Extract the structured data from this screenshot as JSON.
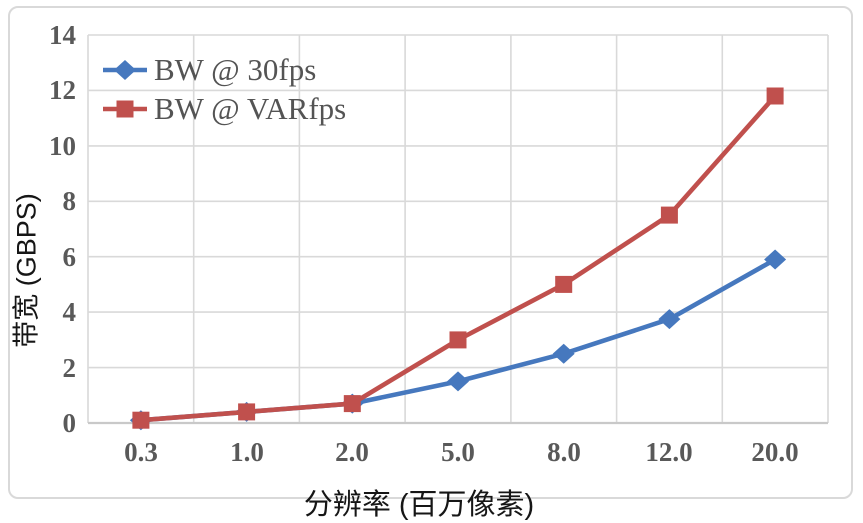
{
  "chart_data": {
    "type": "line",
    "title": "",
    "xlabel": "分辨率 (百万像素)",
    "ylabel": "带宽 (GBPS)",
    "categories": [
      "0.3",
      "1.0",
      "2.0",
      "5.0",
      "8.0",
      "12.0",
      "20.0"
    ],
    "series": [
      {
        "name": "BW @ 30fps",
        "marker": "diamond",
        "color": "#4678BE",
        "values": [
          0.1,
          0.4,
          0.7,
          1.5,
          2.5,
          3.75,
          5.9
        ]
      },
      {
        "name": "BW @ VARfps",
        "marker": "square",
        "color": "#C0504D",
        "values": [
          0.1,
          0.4,
          0.7,
          3.0,
          5.0,
          7.5,
          11.8
        ]
      }
    ],
    "ylim": [
      0,
      14
    ],
    "ytick_step": 2,
    "yticks": [
      "0",
      "2",
      "4",
      "6",
      "8",
      "10",
      "12",
      "14"
    ],
    "grid": true,
    "legend_position": "top-left-inside"
  },
  "colors": {
    "gridline": "#d9d9d9",
    "axis_line": "#c9c9c9",
    "tick_text": "#595959",
    "frame_border": "#d9d9d9",
    "background": "#ffffff"
  }
}
